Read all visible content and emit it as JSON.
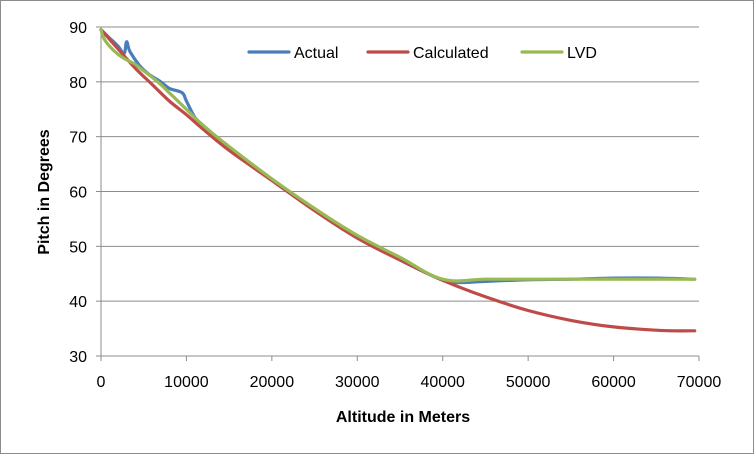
{
  "chart_data": {
    "type": "line",
    "title": "",
    "xlabel": "Altitude in Meters",
    "ylabel": "Pitch in Degrees",
    "xlim": [
      0,
      70000
    ],
    "ylim": [
      30,
      90
    ],
    "xticks": [
      0,
      10000,
      20000,
      30000,
      40000,
      50000,
      60000,
      70000
    ],
    "yticks": [
      30,
      40,
      50,
      60,
      70,
      80,
      90
    ],
    "grid": "horizontal",
    "legend": "top-center",
    "series": [
      {
        "name": "Actual",
        "color": "#4a7ebb",
        "x": [
          0,
          1000,
          2000,
          2700,
          3000,
          3400,
          4500,
          5500,
          7000,
          8000,
          9500,
          10000,
          11000,
          12000,
          15000,
          20000,
          25000,
          30000,
          35000,
          40000,
          42000,
          45000,
          50000,
          55000,
          60000,
          65000,
          69500
        ],
        "y": [
          89.5,
          88,
          86.5,
          85.2,
          87.3,
          85.5,
          83,
          81.5,
          80,
          78.8,
          78,
          76.5,
          73.5,
          72,
          68,
          62,
          56.7,
          51.7,
          47.5,
          43.8,
          43.4,
          43.6,
          43.9,
          44,
          44.2,
          44.2,
          44
        ]
      },
      {
        "name": "Calculated",
        "color": "#be4b48",
        "x": [
          0,
          2000,
          4000,
          6000,
          8000,
          10000,
          12000,
          15000,
          20000,
          25000,
          30000,
          35000,
          40000,
          45000,
          50000,
          55000,
          60000,
          65000,
          67000,
          69500
        ],
        "y": [
          89.5,
          86,
          82.5,
          79.5,
          76.5,
          74,
          71.3,
          67.5,
          62,
          56.5,
          51.5,
          47.5,
          43.8,
          40.8,
          38.3,
          36.5,
          35.3,
          34.7,
          34.6,
          34.6
        ]
      },
      {
        "name": "LVD",
        "color": "#98b954",
        "x": [
          0,
          300,
          1000,
          2000,
          3000,
          4000,
          5000,
          6000,
          7000,
          8000,
          10000,
          12000,
          15000,
          20000,
          25000,
          30000,
          35000,
          40000,
          45000,
          50000,
          55000,
          60000,
          65000,
          69500
        ],
        "y": [
          89.5,
          88,
          86.5,
          85,
          84,
          83.2,
          82,
          80.8,
          79.5,
          78,
          75,
          72,
          68.2,
          62.3,
          56.9,
          52,
          48,
          44,
          44,
          44,
          44,
          44,
          44,
          44
        ]
      }
    ]
  }
}
